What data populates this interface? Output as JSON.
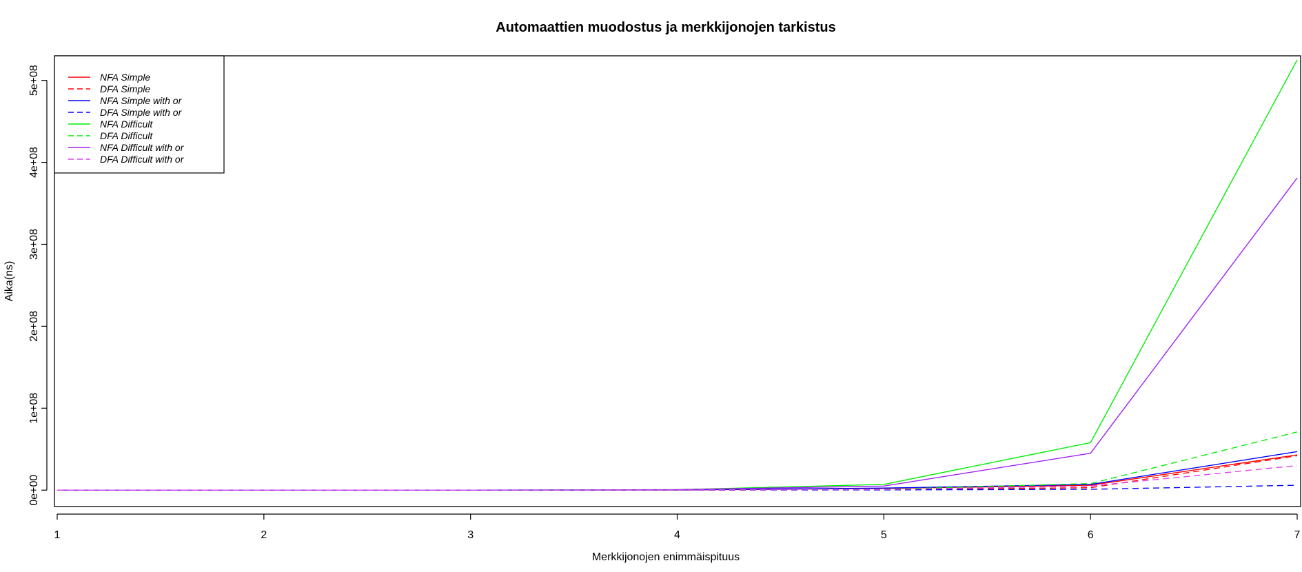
{
  "chart_data": {
    "type": "line",
    "title": "Automaattien muodostus ja merkkijonojen tarkistus",
    "xlabel": "Merkkijonojen enimmäispituus",
    "ylabel": "Aika(ns)",
    "x": [
      1,
      2,
      3,
      4,
      5,
      6,
      7
    ],
    "xlim": [
      1,
      7
    ],
    "ylim": [
      -20000000,
      530000000
    ],
    "x_ticks": [
      "1",
      "2",
      "3",
      "4",
      "5",
      "6",
      "7"
    ],
    "y_ticks": [
      {
        "value": 0,
        "label": "0e+00"
      },
      {
        "value": 100000000,
        "label": "1e+08"
      },
      {
        "value": 200000000,
        "label": "2e+08"
      },
      {
        "value": 300000000,
        "label": "3e+08"
      },
      {
        "value": 400000000,
        "label": "4e+08"
      },
      {
        "value": 500000000,
        "label": "5e+08"
      }
    ],
    "grid": false,
    "legend_position": "top-left",
    "series": [
      {
        "name": "NFA Simple",
        "color": "#ff0000",
        "dash": "solid",
        "values": [
          0,
          0,
          0,
          200000,
          2000000,
          6000000,
          43000000
        ]
      },
      {
        "name": "DFA Simple",
        "color": "#ff0000",
        "dash": "dashed",
        "values": [
          0,
          0,
          0,
          50000,
          500000,
          3000000,
          42000000
        ]
      },
      {
        "name": "NFA Simple with or",
        "color": "#0000ff",
        "dash": "solid",
        "values": [
          0,
          0,
          0,
          300000,
          2500000,
          7000000,
          47000000
        ]
      },
      {
        "name": "DFA Simple with or",
        "color": "#0000ff",
        "dash": "dashed",
        "values": [
          0,
          0,
          0,
          50000,
          300000,
          1000000,
          6000000
        ]
      },
      {
        "name": "NFA Difficult",
        "color": "#00ee00",
        "dash": "solid",
        "values": [
          0,
          0,
          0,
          600000,
          7000000,
          58000000,
          525000000
        ]
      },
      {
        "name": "DFA Difficult",
        "color": "#00ee00",
        "dash": "dashed",
        "values": [
          0,
          0,
          0,
          100000,
          1000000,
          8000000,
          71000000
        ]
      },
      {
        "name": "NFA Difficult with or",
        "color": "#a020f0",
        "dash": "solid",
        "values": [
          0,
          0,
          0,
          500000,
          5000000,
          45000000,
          381000000
        ]
      },
      {
        "name": "DFA Difficult with or",
        "color": "#e040f0",
        "dash": "dashed",
        "values": [
          0,
          0,
          0,
          80000,
          800000,
          5000000,
          30000000
        ]
      }
    ]
  }
}
